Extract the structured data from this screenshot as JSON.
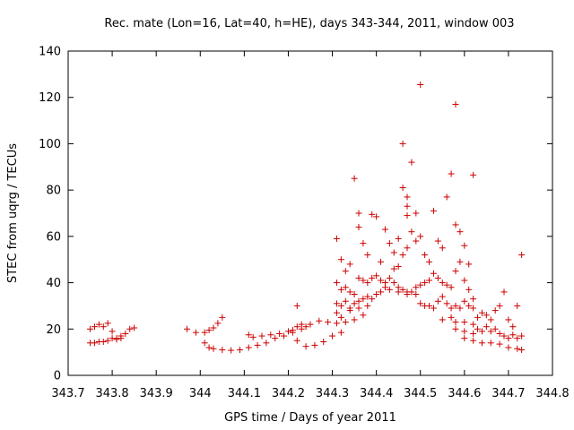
{
  "chart_data": {
    "type": "scatter",
    "title": "Rec. mate (Lon=16, Lat=40, h=HE), days 343-344, 2011, window 003",
    "xlabel": "GPS time / Days of year 2011",
    "ylabel": "STEC from uqrg / TECUs",
    "xlim": [
      343.7,
      344.8
    ],
    "ylim": [
      0,
      140
    ],
    "xticks": [
      "343.7",
      "343.8",
      "343.9",
      "344",
      "344.1",
      "344.2",
      "344.3",
      "344.4",
      "344.5",
      "344.6",
      "344.7",
      "344.8"
    ],
    "yticks": [
      "0",
      "20",
      "40",
      "60",
      "80",
      "100",
      "120",
      "140"
    ],
    "grid": false,
    "legend": "none",
    "marker": "+",
    "marker_color": "#cc0000",
    "series": [
      {
        "points": [
          [
            343.75,
            20
          ],
          [
            343.76,
            21
          ],
          [
            343.77,
            22
          ],
          [
            343.78,
            21
          ],
          [
            343.79,
            22.5
          ],
          [
            343.8,
            19
          ],
          [
            343.81,
            16
          ],
          [
            343.82,
            17
          ],
          [
            343.83,
            18
          ],
          [
            343.84,
            20
          ],
          [
            343.85,
            20.5
          ],
          [
            343.75,
            14
          ],
          [
            343.76,
            14
          ],
          [
            343.77,
            14.5
          ],
          [
            343.78,
            14.5
          ],
          [
            343.79,
            15
          ],
          [
            343.8,
            16
          ],
          [
            343.81,
            15.5
          ],
          [
            343.82,
            16
          ],
          [
            343.97,
            20
          ],
          [
            343.99,
            18.5
          ],
          [
            344.01,
            18.5
          ],
          [
            344.02,
            19.5
          ],
          [
            344.03,
            20.5
          ],
          [
            344.04,
            22.5
          ],
          [
            344.05,
            25
          ],
          [
            344.01,
            14
          ],
          [
            344.02,
            12
          ],
          [
            344.03,
            11.5
          ],
          [
            344.05,
            11
          ],
          [
            344.07,
            10.8
          ],
          [
            344.09,
            11
          ],
          [
            344.11,
            12
          ],
          [
            344.13,
            13
          ],
          [
            344.15,
            14
          ],
          [
            344.17,
            16
          ],
          [
            344.19,
            17
          ],
          [
            344.21,
            18.5
          ],
          [
            344.23,
            20
          ],
          [
            344.11,
            17.5
          ],
          [
            344.12,
            16.5
          ],
          [
            344.14,
            17
          ],
          [
            344.16,
            17.5
          ],
          [
            344.18,
            18
          ],
          [
            344.2,
            19
          ],
          [
            344.21,
            19.5
          ],
          [
            344.22,
            21
          ],
          [
            344.23,
            22
          ],
          [
            344.24,
            21
          ],
          [
            344.25,
            22
          ],
          [
            344.27,
            23.5
          ],
          [
            344.29,
            23
          ],
          [
            344.31,
            22.5
          ],
          [
            344.33,
            23
          ],
          [
            344.35,
            24
          ],
          [
            344.37,
            26
          ],
          [
            344.22,
            15
          ],
          [
            344.24,
            12.5
          ],
          [
            344.26,
            13
          ],
          [
            344.28,
            14.5
          ],
          [
            344.3,
            17
          ],
          [
            344.32,
            18.5
          ],
          [
            344.22,
            30
          ],
          [
            344.31,
            59
          ],
          [
            344.32,
            50
          ],
          [
            344.33,
            45
          ],
          [
            344.34,
            48
          ],
          [
            344.35,
            85
          ],
          [
            344.36,
            64
          ],
          [
            344.36,
            70
          ],
          [
            344.37,
            57
          ],
          [
            344.38,
            52
          ],
          [
            344.39,
            69.5
          ],
          [
            344.4,
            68.5
          ],
          [
            344.41,
            49
          ],
          [
            344.42,
            63
          ],
          [
            344.43,
            57
          ],
          [
            344.44,
            53
          ],
          [
            344.45,
            59
          ],
          [
            344.31,
            40
          ],
          [
            344.32,
            37
          ],
          [
            344.33,
            38
          ],
          [
            344.34,
            36
          ],
          [
            344.35,
            35
          ],
          [
            344.36,
            42
          ],
          [
            344.37,
            41
          ],
          [
            344.38,
            40
          ],
          [
            344.39,
            42
          ],
          [
            344.4,
            43
          ],
          [
            344.41,
            41
          ],
          [
            344.42,
            40
          ],
          [
            344.31,
            31
          ],
          [
            344.32,
            30
          ],
          [
            344.33,
            32
          ],
          [
            344.34,
            29
          ],
          [
            344.35,
            31
          ],
          [
            344.36,
            32
          ],
          [
            344.37,
            33
          ],
          [
            344.38,
            34
          ],
          [
            344.39,
            33
          ],
          [
            344.4,
            35
          ],
          [
            344.41,
            36
          ],
          [
            344.42,
            38
          ],
          [
            344.31,
            27
          ],
          [
            344.32,
            25
          ],
          [
            344.34,
            28
          ],
          [
            344.36,
            29
          ],
          [
            344.38,
            30
          ],
          [
            344.46,
            100
          ],
          [
            344.47,
            69
          ],
          [
            344.47,
            77
          ],
          [
            344.48,
            92
          ],
          [
            344.49,
            70
          ],
          [
            344.5,
            125.5
          ],
          [
            344.46,
            81
          ],
          [
            344.47,
            73
          ],
          [
            344.44,
            46
          ],
          [
            344.45,
            47
          ],
          [
            344.46,
            52
          ],
          [
            344.47,
            55
          ],
          [
            344.48,
            62
          ],
          [
            344.49,
            58
          ],
          [
            344.5,
            60
          ],
          [
            344.51,
            52
          ],
          [
            344.52,
            49
          ],
          [
            344.53,
            71
          ],
          [
            344.54,
            58
          ],
          [
            344.55,
            55
          ],
          [
            344.56,
            77
          ],
          [
            344.57,
            87
          ],
          [
            344.58,
            65
          ],
          [
            344.58,
            117
          ],
          [
            344.59,
            62
          ],
          [
            344.6,
            56
          ],
          [
            344.61,
            48
          ],
          [
            344.62,
            86.5
          ],
          [
            344.43,
            42
          ],
          [
            344.44,
            40
          ],
          [
            344.45,
            38
          ],
          [
            344.46,
            37
          ],
          [
            344.47,
            35
          ],
          [
            344.48,
            36
          ],
          [
            344.49,
            38
          ],
          [
            344.5,
            39
          ],
          [
            344.51,
            40
          ],
          [
            344.52,
            41
          ],
          [
            344.53,
            44
          ],
          [
            344.54,
            42
          ],
          [
            344.55,
            40
          ],
          [
            344.56,
            39
          ],
          [
            344.57,
            38
          ],
          [
            344.58,
            45
          ],
          [
            344.59,
            49
          ],
          [
            344.6,
            41
          ],
          [
            344.61,
            37
          ],
          [
            344.62,
            33
          ],
          [
            344.43,
            37
          ],
          [
            344.45,
            36
          ],
          [
            344.47,
            36
          ],
          [
            344.49,
            35
          ],
          [
            344.5,
            31
          ],
          [
            344.51,
            30
          ],
          [
            344.52,
            30
          ],
          [
            344.53,
            29
          ],
          [
            344.54,
            32
          ],
          [
            344.55,
            34
          ],
          [
            344.56,
            31
          ],
          [
            344.57,
            29
          ],
          [
            344.58,
            30
          ],
          [
            344.59,
            29
          ],
          [
            344.6,
            32
          ],
          [
            344.61,
            30
          ],
          [
            344.62,
            29
          ],
          [
            344.55,
            24
          ],
          [
            344.57,
            25
          ],
          [
            344.58,
            23
          ],
          [
            344.6,
            23
          ],
          [
            344.62,
            22
          ],
          [
            344.63,
            25
          ],
          [
            344.64,
            27
          ],
          [
            344.65,
            26
          ],
          [
            344.66,
            24
          ],
          [
            344.67,
            28
          ],
          [
            344.68,
            30
          ],
          [
            344.69,
            36
          ],
          [
            344.7,
            24
          ],
          [
            344.71,
            21
          ],
          [
            344.72,
            30
          ],
          [
            344.73,
            52
          ],
          [
            344.58,
            20
          ],
          [
            344.6,
            19
          ],
          [
            344.62,
            18
          ],
          [
            344.63,
            20
          ],
          [
            344.64,
            19
          ],
          [
            344.65,
            21
          ],
          [
            344.66,
            19
          ],
          [
            344.67,
            20
          ],
          [
            344.68,
            18
          ],
          [
            344.69,
            17
          ],
          [
            344.7,
            16
          ],
          [
            344.71,
            17.5
          ],
          [
            344.72,
            16
          ],
          [
            344.73,
            17
          ],
          [
            344.6,
            16
          ],
          [
            344.62,
            15
          ],
          [
            344.64,
            14
          ],
          [
            344.66,
            14
          ],
          [
            344.68,
            13.5
          ],
          [
            344.7,
            12
          ],
          [
            344.72,
            11.5
          ],
          [
            344.73,
            11
          ]
        ]
      }
    ]
  }
}
